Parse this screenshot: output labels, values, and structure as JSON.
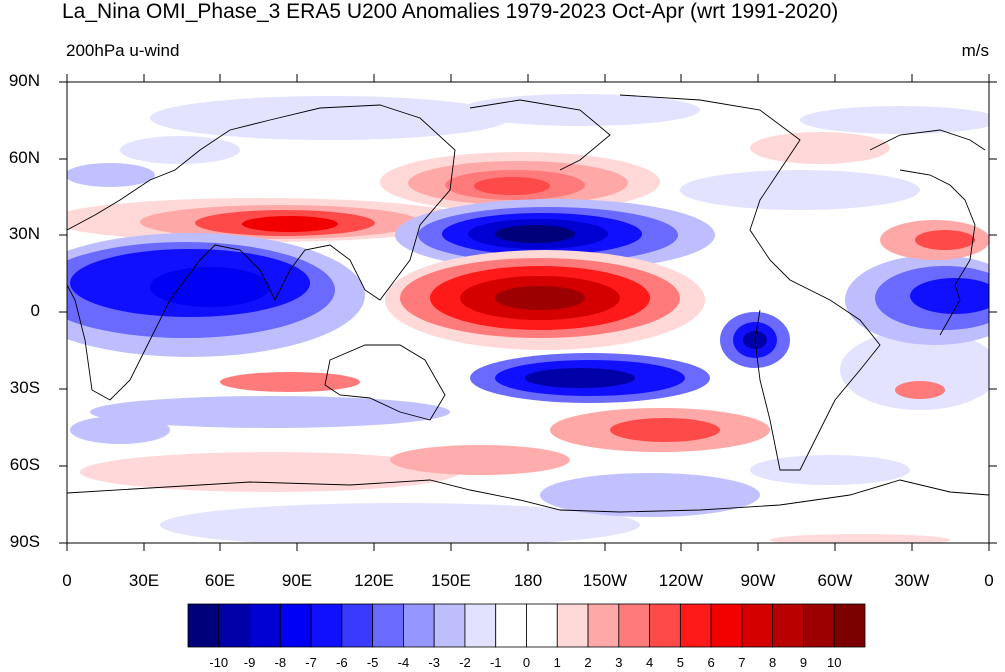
{
  "title": "La_Nina OMI_Phase_3 ERA5 U200 Anomalies 1979-2023 Oct-Apr (wrt 1991-2020)",
  "left_string": "200hPa u-wind",
  "right_string": "m/s",
  "lat_labels": [
    "90N",
    "60N",
    "30N",
    "0",
    "30S",
    "60S",
    "90S"
  ],
  "lon_labels": [
    "0",
    "30E",
    "60E",
    "90E",
    "120E",
    "150E",
    "180",
    "150W",
    "120W",
    "90W",
    "60W",
    "30W",
    "0"
  ],
  "colorbar": {
    "colors": [
      "#00007a",
      "#0000a8",
      "#0000d2",
      "#0000f2",
      "#1010ff",
      "#3a3aff",
      "#6a6aff",
      "#9696ff",
      "#bebeff",
      "#e2e2ff",
      "#ffffff",
      "#ffffff",
      "#ffd8d8",
      "#ffa8a8",
      "#ff7a7a",
      "#ff4a4a",
      "#ff1a1a",
      "#f20000",
      "#d40000",
      "#b80000",
      "#9c0000",
      "#7c0000"
    ],
    "labels": [
      "-10",
      "-9",
      "-8",
      "-7",
      "-6",
      "-5",
      "-4",
      "-3",
      "-2",
      "-1",
      "0",
      "1",
      "2",
      "3",
      "4",
      "5",
      "6",
      "7",
      "8",
      "9",
      "10"
    ]
  },
  "anomaly_blobs": [
    {
      "region": "North Pacific 30N",
      "lon": 180,
      "lat": 30,
      "value": -10
    },
    {
      "region": "Central Pacific equator",
      "lon": 180,
      "lat": 5,
      "value": 9
    },
    {
      "region": "North Pacific 45N",
      "lon": 175,
      "lat": 48,
      "value": 6
    },
    {
      "region": "South Asia 30N",
      "lon": 90,
      "lat": 33,
      "value": 7
    },
    {
      "region": "Indian Ocean / Africa equator",
      "lon": 50,
      "lat": 10,
      "value": -6
    },
    {
      "region": "South Pacific 25S",
      "lon": 200,
      "lat": -25,
      "value": -8
    },
    {
      "region": "Tropical east Pacific",
      "lon": 268,
      "lat": -10,
      "value": -7
    },
    {
      "region": "Tropical Atlantic",
      "lon": 340,
      "lat": 5,
      "value": -6
    },
    {
      "region": "North Africa 30N",
      "lon": 345,
      "lat": 28,
      "value": 5
    },
    {
      "region": "South Pacific 45S",
      "lon": 220,
      "lat": -48,
      "value": 4
    },
    {
      "region": "South Indian 25S",
      "lon": 95,
      "lat": -27,
      "value": 3
    }
  ]
}
